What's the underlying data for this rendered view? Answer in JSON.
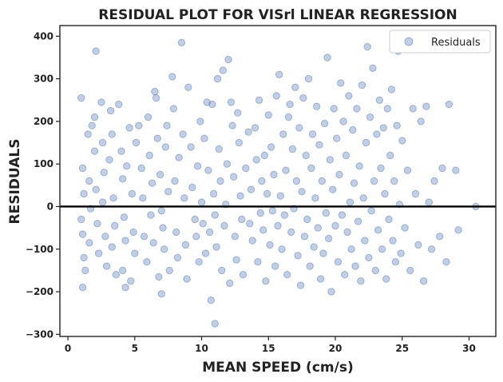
{
  "chart_data": {
    "type": "scatter",
    "title": "RESIDUAL PLOT FOR VISrl LINEAR REGRESSION",
    "xlabel": "MEAN SPEED (cm/s)",
    "ylabel": "RESIDUALS",
    "xlim": [
      -0.6,
      32
    ],
    "ylim": [
      -305,
      425
    ],
    "xticks": [
      0,
      5,
      10,
      15,
      20,
      25,
      30
    ],
    "yticks": [
      -300,
      -200,
      -100,
      0,
      100,
      200,
      300,
      400
    ],
    "xtick_labels": [
      "0",
      "5",
      "10",
      "15",
      "20",
      "25",
      "30"
    ],
    "ytick_labels": [
      "−300",
      "−200",
      "−100",
      "0",
      "100",
      "200",
      "300",
      "400"
    ],
    "reference_line_y": 0,
    "grid": false,
    "legend": {
      "position": "top-right",
      "entries": [
        "Residuals"
      ]
    },
    "colors": {
      "point": "#4c72b0",
      "line": "#000000"
    },
    "series": [
      {
        "name": "Residuals",
        "points": [
          [
            1.0,
            255
          ],
          [
            1.1,
            90
          ],
          [
            1.2,
            30
          ],
          [
            1.0,
            -30
          ],
          [
            1.1,
            -65
          ],
          [
            1.2,
            -120
          ],
          [
            1.3,
            -150
          ],
          [
            1.1,
            -190
          ],
          [
            1.5,
            170
          ],
          [
            1.6,
            60
          ],
          [
            1.7,
            -5
          ],
          [
            1.6,
            -85
          ],
          [
            1.8,
            190
          ],
          [
            2.0,
            210
          ],
          [
            2.1,
            365
          ],
          [
            2.0,
            130
          ],
          [
            2.1,
            40
          ],
          [
            2.2,
            -40
          ],
          [
            2.3,
            -110
          ],
          [
            2.5,
            245
          ],
          [
            2.6,
            150
          ],
          [
            2.7,
            80
          ],
          [
            2.6,
            10
          ],
          [
            2.8,
            -70
          ],
          [
            2.9,
            -140
          ],
          [
            3.2,
            225
          ],
          [
            3.3,
            170
          ],
          [
            3.1,
            110
          ],
          [
            3.4,
            20
          ],
          [
            3.5,
            -45
          ],
          [
            3.3,
            -95
          ],
          [
            3.6,
            -160
          ],
          [
            3.8,
            240
          ],
          [
            4.0,
            130
          ],
          [
            4.1,
            65
          ],
          [
            4.2,
            -25
          ],
          [
            4.3,
            -80
          ],
          [
            4.1,
            -150
          ],
          [
            4.4,
            95
          ],
          [
            4.6,
            185
          ],
          [
            4.8,
            30
          ],
          [
            4.9,
            -60
          ],
          [
            5.0,
            -110
          ],
          [
            5.1,
            150
          ],
          [
            4.3,
            -190
          ],
          [
            4.7,
            -175
          ],
          [
            5.3,
            190
          ],
          [
            5.5,
            90
          ],
          [
            5.6,
            20
          ],
          [
            5.7,
            -70
          ],
          [
            5.9,
            -130
          ],
          [
            6.0,
            210
          ],
          [
            6.1,
            120
          ],
          [
            6.3,
            55
          ],
          [
            6.2,
            -20
          ],
          [
            6.4,
            -85
          ],
          [
            6.6,
            255
          ],
          [
            6.7,
            160
          ],
          [
            6.5,
            270
          ],
          [
            6.8,
            -165
          ],
          [
            6.9,
            75
          ],
          [
            7.0,
            -10
          ],
          [
            7.1,
            -50
          ],
          [
            7.2,
            -100
          ],
          [
            7.3,
            140
          ],
          [
            7.4,
            190
          ],
          [
            7.5,
            35
          ],
          [
            7.6,
            -150
          ],
          [
            7.0,
            -205
          ],
          [
            7.8,
            305
          ],
          [
            7.9,
            230
          ],
          [
            8.0,
            60
          ],
          [
            8.1,
            -60
          ],
          [
            8.2,
            -120
          ],
          [
            8.3,
            115
          ],
          [
            8.5,
            385
          ],
          [
            8.6,
            170
          ],
          [
            8.7,
            20
          ],
          [
            8.8,
            -90
          ],
          [
            8.9,
            -170
          ],
          [
            9.0,
            280
          ],
          [
            9.2,
            140
          ],
          [
            9.3,
            45
          ],
          [
            9.5,
            -30
          ],
          [
            9.6,
            -70
          ],
          [
            9.7,
            95
          ],
          [
            9.8,
            -130
          ],
          [
            9.9,
            200
          ],
          [
            10.0,
            10
          ],
          [
            10.1,
            -40
          ],
          [
            10.2,
            160
          ],
          [
            10.3,
            -110
          ],
          [
            10.4,
            245
          ],
          [
            10.5,
            85
          ],
          [
            10.6,
            -60
          ],
          [
            10.7,
            -220
          ],
          [
            10.8,
            240
          ],
          [
            10.9,
            30
          ],
          [
            11.0,
            -20
          ],
          [
            11.1,
            -95
          ],
          [
            11.0,
            -275
          ],
          [
            11.2,
            300
          ],
          [
            11.3,
            135
          ],
          [
            11.4,
            60
          ],
          [
            11.5,
            -150
          ],
          [
            11.6,
            320
          ],
          [
            11.7,
            -45
          ],
          [
            11.8,
            5
          ],
          [
            11.9,
            100
          ],
          [
            12.0,
            345
          ],
          [
            12.1,
            -180
          ],
          [
            12.2,
            245
          ],
          [
            12.3,
            190
          ],
          [
            12.4,
            70
          ],
          [
            12.5,
            -70
          ],
          [
            12.6,
            -125
          ],
          [
            12.7,
            220
          ],
          [
            12.8,
            150
          ],
          [
            12.9,
            25
          ],
          [
            13.0,
            -30
          ],
          [
            13.1,
            -160
          ],
          [
            13.3,
            90
          ],
          [
            13.5,
            175
          ],
          [
            13.6,
            -40
          ],
          [
            13.7,
            40
          ],
          [
            13.8,
            -80
          ],
          [
            14.0,
            185
          ],
          [
            14.1,
            110
          ],
          [
            14.2,
            -130
          ],
          [
            14.3,
            250
          ],
          [
            14.4,
            -15
          ],
          [
            14.5,
            60
          ],
          [
            14.6,
            -55
          ],
          [
            14.7,
            120
          ],
          [
            14.8,
            -175
          ],
          [
            14.9,
            30
          ],
          [
            15.0,
            215
          ],
          [
            15.1,
            -90
          ],
          [
            15.2,
            140
          ],
          [
            15.3,
            -10
          ],
          [
            15.4,
            75
          ],
          [
            15.5,
            -140
          ],
          [
            15.6,
            260
          ],
          [
            15.7,
            -45
          ],
          [
            15.8,
            310
          ],
          [
            15.9,
            25
          ],
          [
            16.0,
            -100
          ],
          [
            16.1,
            170
          ],
          [
            16.2,
            -20
          ],
          [
            16.3,
            85
          ],
          [
            16.4,
            -160
          ],
          [
            16.5,
            210
          ],
          [
            16.6,
            240
          ],
          [
            16.7,
            -60
          ],
          [
            16.8,
            135
          ],
          [
            16.9,
            -5
          ],
          [
            17.0,
            280
          ],
          [
            17.1,
            60
          ],
          [
            17.2,
            -115
          ],
          [
            17.3,
            185
          ],
          [
            17.4,
            -185
          ],
          [
            17.5,
            35
          ],
          [
            17.6,
            255
          ],
          [
            17.7,
            -70
          ],
          [
            17.8,
            120
          ],
          [
            17.9,
            -30
          ],
          [
            18.0,
            300
          ],
          [
            18.1,
            -140
          ],
          [
            18.2,
            90
          ],
          [
            18.3,
            170
          ],
          [
            18.4,
            -95
          ],
          [
            18.5,
            20
          ],
          [
            18.6,
            235
          ],
          [
            18.7,
            -50
          ],
          [
            18.8,
            145
          ],
          [
            18.9,
            -170
          ],
          [
            19.0,
            60
          ],
          [
            19.1,
            -110
          ],
          [
            19.2,
            195
          ],
          [
            19.3,
            -15
          ],
          [
            19.4,
            350
          ],
          [
            19.5,
            -75
          ],
          [
            19.6,
            110
          ],
          [
            19.7,
            -200
          ],
          [
            19.8,
            40
          ],
          [
            19.9,
            230
          ],
          [
            20.0,
            -45
          ],
          [
            20.1,
            160
          ],
          [
            20.2,
            -130
          ],
          [
            20.3,
            75
          ],
          [
            20.4,
            290
          ],
          [
            20.5,
            -20
          ],
          [
            20.6,
            200
          ],
          [
            20.7,
            -160
          ],
          [
            20.8,
            120
          ],
          [
            20.9,
            -60
          ],
          [
            21.0,
            260
          ],
          [
            21.1,
            10
          ],
          [
            21.2,
            -100
          ],
          [
            21.3,
            180
          ],
          [
            21.4,
            55
          ],
          [
            21.5,
            -140
          ],
          [
            21.6,
            230
          ],
          [
            21.7,
            -35
          ],
          [
            21.8,
            95
          ],
          [
            21.9,
            -175
          ],
          [
            22.0,
            285
          ],
          [
            22.1,
            20
          ],
          [
            22.2,
            -80
          ],
          [
            22.3,
            150
          ],
          [
            22.4,
            375
          ],
          [
            22.5,
            -120
          ],
          [
            22.6,
            210
          ],
          [
            22.7,
            -10
          ],
          [
            22.8,
            325
          ],
          [
            22.9,
            60
          ],
          [
            23.0,
            -150
          ],
          [
            23.1,
            170
          ],
          [
            23.2,
            -55
          ],
          [
            23.3,
            250
          ],
          [
            23.4,
            90
          ],
          [
            23.5,
            -100
          ],
          [
            23.6,
            185
          ],
          [
            23.7,
            30
          ],
          [
            23.8,
            -170
          ],
          [
            23.9,
            230
          ],
          [
            24.0,
            -30
          ],
          [
            24.1,
            120
          ],
          [
            24.2,
            275
          ],
          [
            24.3,
            -80
          ],
          [
            24.4,
            60
          ],
          [
            24.5,
            -130
          ],
          [
            24.6,
            190
          ],
          [
            24.7,
            365
          ],
          [
            24.8,
            5
          ],
          [
            24.9,
            -110
          ],
          [
            25.0,
            155
          ],
          [
            25.2,
            -50
          ],
          [
            25.4,
            85
          ],
          [
            25.6,
            -150
          ],
          [
            25.8,
            230
          ],
          [
            26.0,
            30
          ],
          [
            26.2,
            -90
          ],
          [
            26.4,
            200
          ],
          [
            26.6,
            -175
          ],
          [
            26.8,
            235
          ],
          [
            27.0,
            10
          ],
          [
            27.2,
            -100
          ],
          [
            27.4,
            60
          ],
          [
            27.8,
            -70
          ],
          [
            28.0,
            90
          ],
          [
            28.3,
            -130
          ],
          [
            28.5,
            240
          ],
          [
            29.0,
            85
          ],
          [
            29.2,
            -55
          ],
          [
            30.5,
            0
          ]
        ]
      }
    ]
  }
}
